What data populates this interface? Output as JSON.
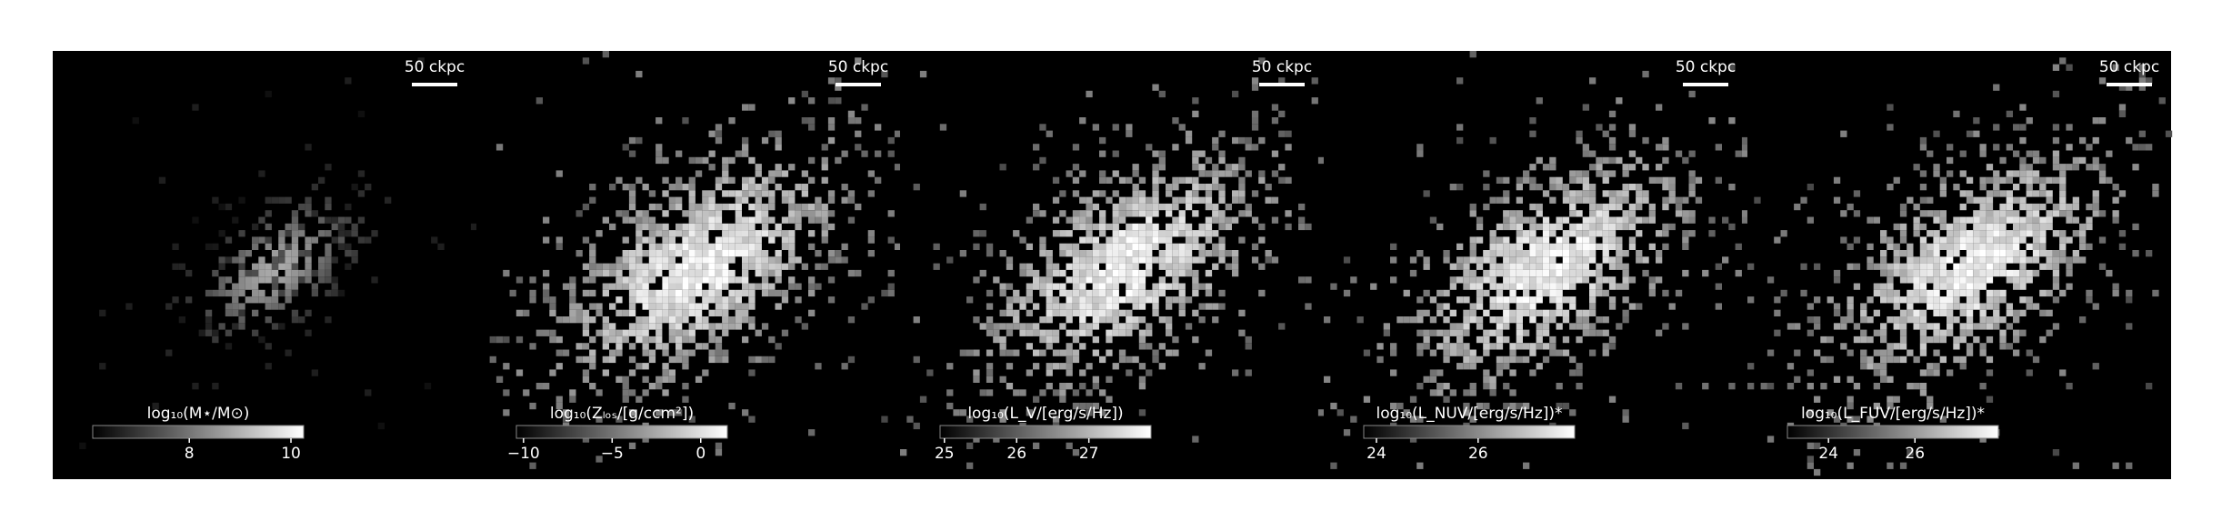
{
  "panels": [
    {
      "scale_bar": "50 ckpc",
      "colorbar": {
        "label": "log₁₀(M⋆/M⊙)",
        "clim": [
          6.1,
          10.25
        ],
        "ticks": [
          8,
          10
        ]
      }
    },
    {
      "scale_bar": "50 ckpc",
      "colorbar": {
        "label": "log₁₀(Zₗₒₛ/[g/ccm²])",
        "clim": [
          -10.4,
          1.5
        ],
        "ticks": [
          {
            "value": -10,
            "label": "−10"
          },
          {
            "value": -5,
            "label": "−5"
          },
          0
        ]
      }
    },
    {
      "scale_bar": "50 ckpc",
      "colorbar": {
        "label": "log₁₀(L_V/[erg/s/Hz])",
        "clim": [
          24.94,
          27.86
        ],
        "ticks": [
          25,
          26,
          27
        ]
      }
    },
    {
      "scale_bar": "50 ckpc",
      "colorbar": {
        "label": "log₁₀(L_NUV/[erg/s/Hz])*",
        "clim": [
          23.75,
          27.9
        ],
        "ticks": [
          24,
          26
        ]
      }
    },
    {
      "scale_bar": "50 ckpc",
      "colorbar": {
        "label": "log₁₀(L_FUV/[erg/s/Hz])*",
        "clim": [
          23.05,
          27.93
        ],
        "ticks": [
          24,
          26
        ]
      }
    }
  ]
}
